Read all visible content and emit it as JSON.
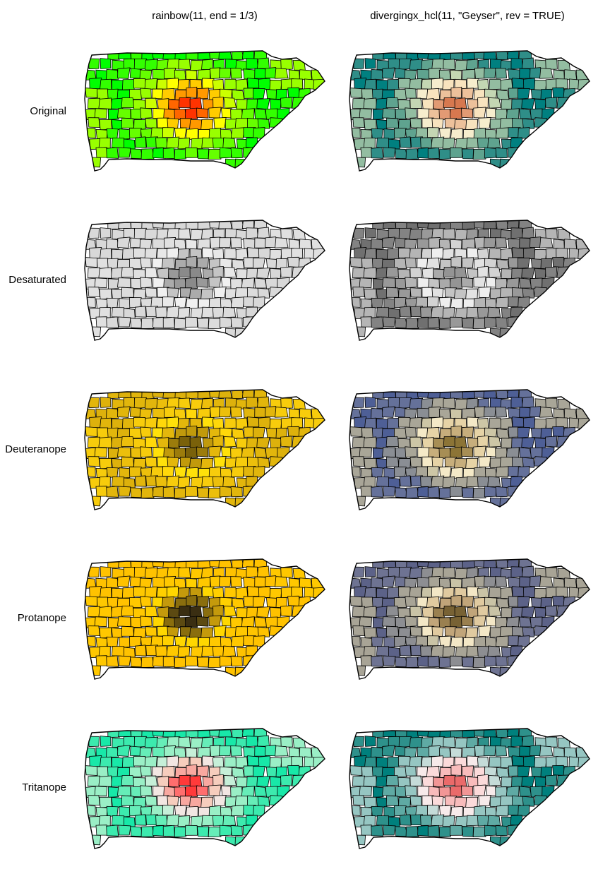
{
  "columns": [
    {
      "title": "rainbow(11, end = 1/3)",
      "palette_key": "rainbow"
    },
    {
      "title": "divergingx_hcl(11, \"Geyser\", rev = TRUE)",
      "palette_key": "geyser"
    }
  ],
  "rows": [
    {
      "label": "Original",
      "variant": "original"
    },
    {
      "label": "Desaturated",
      "variant": "desaturated"
    },
    {
      "label": "Deuteranope",
      "variant": "deuteranope"
    },
    {
      "label": "Protanope",
      "variant": "protanope"
    },
    {
      "label": "Tritanope",
      "variant": "tritanope"
    }
  ],
  "palettes": {
    "rainbow": {
      "original": [
        "#FF0000",
        "#FF3300",
        "#FF6600",
        "#FF9900",
        "#FFCC00",
        "#FFFF00",
        "#CCFF00",
        "#99FF00",
        "#66FF00",
        "#33FF00",
        "#00FF00"
      ],
      "desaturated": [
        "#7F7F7F",
        "#8A8A8A",
        "#999999",
        "#ABABAB",
        "#C4C4C4",
        "#F0F0F0",
        "#E8E8E8",
        "#E0E0E0",
        "#DCDCDC",
        "#D9D9D9",
        "#D8D8D8"
      ],
      "deuteranope": [
        "#5A4708",
        "#7A610A",
        "#9C7C0C",
        "#C19A0C",
        "#E4B70C",
        "#FFE10A",
        "#FFD80A",
        "#F7CC0C",
        "#ECBF0C",
        "#E2B60C",
        "#DDB10C"
      ],
      "protanope": [
        "#2A2313",
        "#3A2E12",
        "#5C4A12",
        "#8A6E0E",
        "#C49A0C",
        "#FFD700",
        "#FFD000",
        "#FFC800",
        "#FFC400",
        "#FFC200",
        "#FFC200"
      ],
      "tritanope": [
        "#FF0000",
        "#FF3A3A",
        "#FF6E6E",
        "#F8A8A0",
        "#F6CDBD",
        "#F2E6E2",
        "#C6EFD8",
        "#9AEFC6",
        "#66EDB8",
        "#3CEAAE",
        "#18E8A8"
      ]
    },
    "geyser": {
      "original": [
        "#CA562C",
        "#D7784F",
        "#E29A74",
        "#EDC19B",
        "#F8E3BE",
        "#F6EDCD",
        "#C4D6B3",
        "#93BDA1",
        "#5FA38F",
        "#2F8E88",
        "#008080"
      ],
      "desaturated": [
        "#7F7F7F",
        "#949494",
        "#AAAAAA",
        "#C4C4C4",
        "#E2E2E2",
        "#EEEEEE",
        "#D3D3D3",
        "#B5B5B5",
        "#999999",
        "#838383",
        "#707070"
      ],
      "deuteranope": [
        "#6E5A24",
        "#8C7436",
        "#A78E55",
        "#C7AE7C",
        "#E6D3A6",
        "#F4E9C7",
        "#CDC6A6",
        "#A9A698",
        "#8A8E94",
        "#65719A",
        "#4E5F96"
      ],
      "protanope": [
        "#5A4A22",
        "#786234",
        "#9A8050",
        "#C1A57A",
        "#E0CAA0",
        "#F3E7C6",
        "#C9C3A6",
        "#A8A496",
        "#8D8E92",
        "#6E7392",
        "#5C6288"
      ],
      "tritanope": [
        "#E23A3A",
        "#EA6A6A",
        "#F29696",
        "#F8BBBB",
        "#FBDADA",
        "#F7EAEA",
        "#C5DBD8",
        "#96C6C2",
        "#5FAAA4",
        "#2E918B",
        "#00807D"
      ]
    }
  }
}
